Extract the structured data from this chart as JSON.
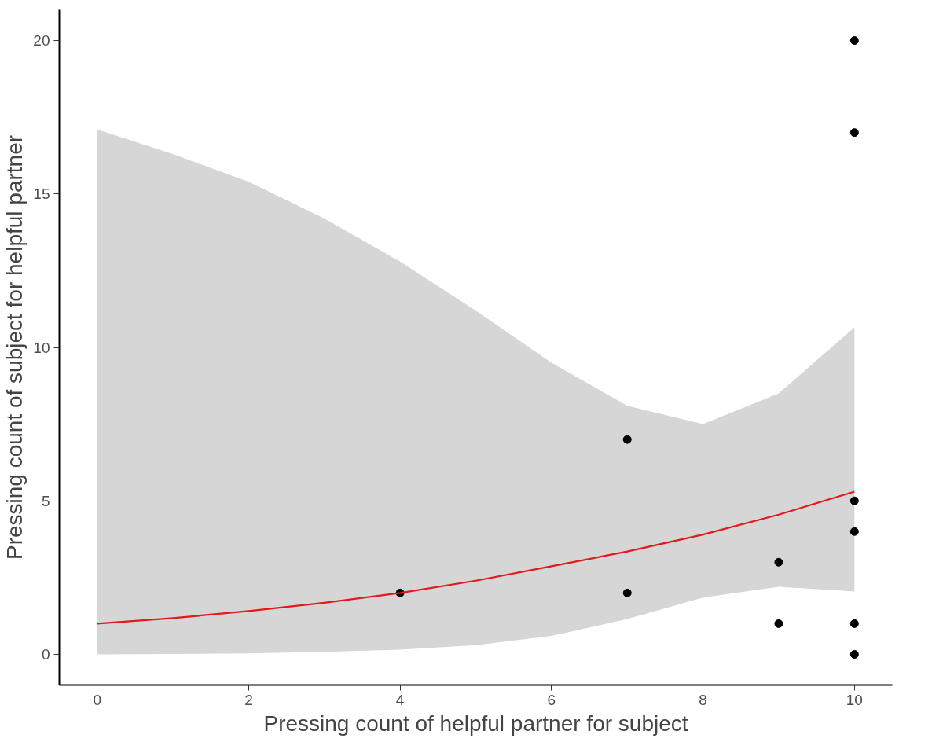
{
  "chart_data": {
    "type": "scatter",
    "xlabel": "Pressing count of helpful partner for subject",
    "ylabel": "Pressing count of subject for helpful partner",
    "xlim": [
      -0.5,
      10.5
    ],
    "ylim": [
      -1,
      21
    ],
    "xticks": [
      0,
      2,
      4,
      6,
      8,
      10
    ],
    "yticks": [
      0,
      5,
      10,
      15,
      20
    ],
    "grid": false,
    "marker": "circle",
    "series": [
      {
        "color": "#000000",
        "x": [
          4,
          7,
          7,
          9,
          9,
          10,
          10,
          10,
          10,
          10,
          10
        ],
        "values": [
          2,
          7,
          2,
          3,
          1,
          20,
          17,
          5,
          4,
          1,
          0
        ]
      },
      {
        "type": "line",
        "color": "#e31a1c",
        "line_style": "solid",
        "marker": "none",
        "x": [
          0,
          1,
          2,
          3,
          4,
          5,
          6,
          7,
          8,
          9,
          10
        ],
        "values": [
          1.0,
          1.18,
          1.41,
          1.68,
          2.0,
          2.4,
          2.87,
          3.35,
          3.9,
          4.55,
          5.3
        ],
        "lower": [
          0,
          0.01,
          0.03,
          0.08,
          0.15,
          0.3,
          0.6,
          1.15,
          1.85,
          2.2,
          2.05
        ],
        "upper": [
          17.1,
          16.3,
          15.4,
          14.2,
          12.8,
          11.2,
          9.5,
          8.1,
          7.5,
          8.5,
          10.65
        ]
      }
    ]
  }
}
